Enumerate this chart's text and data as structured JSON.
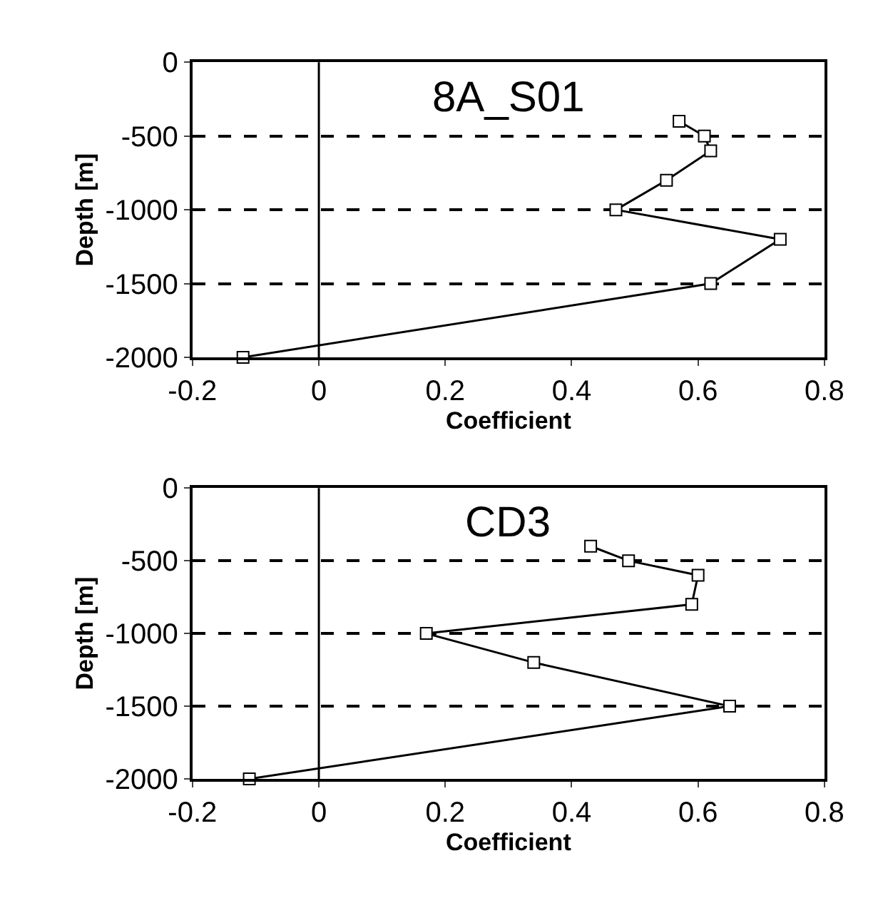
{
  "chart_data": [
    {
      "type": "line",
      "title": "8A_S01",
      "xlabel": "Coefficient",
      "ylabel": "Depth [m]",
      "xlim": [
        -0.2,
        0.8
      ],
      "xticks": [
        -0.2,
        0,
        0.2,
        0.4,
        0.6,
        0.8
      ],
      "ylim": [
        -2000,
        0
      ],
      "yticks": [
        -2000,
        -1500,
        -1000,
        -500,
        0
      ],
      "grid": "y",
      "marker": "square",
      "ref_lines": [
        {
          "axis": "x",
          "value": 0,
          "color": "#000000",
          "line_style": "solid"
        }
      ],
      "series": [
        {
          "color": "#000000",
          "x": [
            0.57,
            0.61,
            0.62,
            0.55,
            0.47,
            0.73,
            0.62,
            -0.12
          ],
          "values": [
            -400,
            -500,
            -600,
            -800,
            -1000,
            -1200,
            -1500,
            -2000
          ]
        }
      ]
    },
    {
      "type": "line",
      "title": "CD3",
      "xlabel": "Coefficient",
      "ylabel": "Depth [m]",
      "xlim": [
        -0.2,
        0.8
      ],
      "xticks": [
        -0.2,
        0,
        0.2,
        0.4,
        0.6,
        0.8
      ],
      "ylim": [
        -2000,
        0
      ],
      "yticks": [
        -2000,
        -1500,
        -1000,
        -500,
        0
      ],
      "grid": "y",
      "marker": "square",
      "ref_lines": [
        {
          "axis": "x",
          "value": 0,
          "color": "#000000",
          "line_style": "solid"
        }
      ],
      "series": [
        {
          "color": "#000000",
          "x": [
            0.43,
            0.49,
            0.6,
            0.59,
            0.17,
            0.34,
            0.65,
            -0.11
          ],
          "values": [
            -400,
            -500,
            -600,
            -800,
            -1000,
            -1200,
            -1500,
            -2000
          ]
        }
      ]
    }
  ]
}
